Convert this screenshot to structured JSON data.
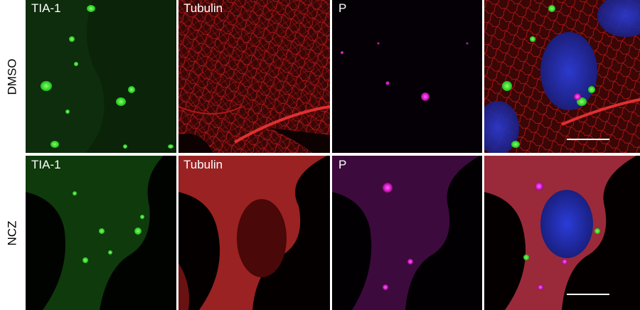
{
  "rows": [
    {
      "label": "DMSO",
      "channels": [
        "TIA-1",
        "Tubulin",
        "P"
      ]
    },
    {
      "label": "NCZ",
      "channels": [
        "TIA-1",
        "Tubulin",
        "P"
      ]
    }
  ]
}
